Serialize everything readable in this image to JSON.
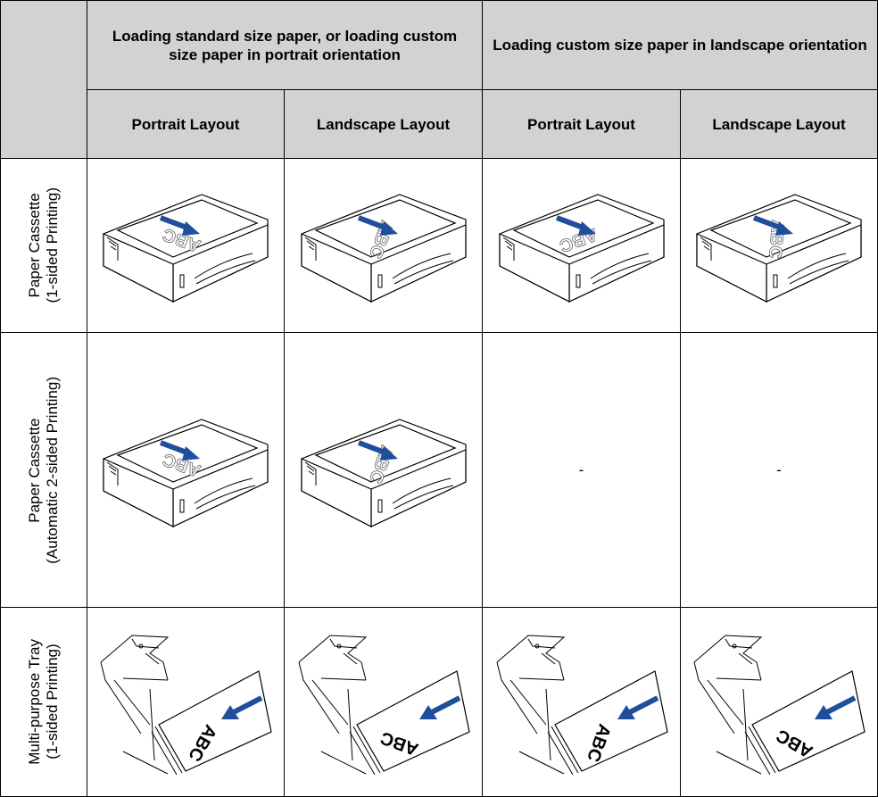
{
  "header": {
    "groups": [
      "Loading standard size paper, or loading custom size paper in portrait orientation",
      "Loading custom size paper in landscape orientation"
    ],
    "columns": [
      "Portrait Layout",
      "Landscape Layout",
      "Portrait Layout",
      "Landscape Layout"
    ]
  },
  "rows": [
    {
      "label": [
        "Paper Cassette",
        "(1-sided Printing)"
      ],
      "cells": [
        {
          "paper_text": "ABC"
        },
        {
          "paper_text": "ABC"
        },
        {
          "paper_text": "ABC"
        },
        {
          "paper_text": "ABC"
        }
      ]
    },
    {
      "label": [
        "Paper Cassette",
        "(Automatic 2-sided Printing)"
      ],
      "cells": [
        {
          "paper_text": "ABC"
        },
        {
          "paper_text": "ABC"
        },
        "-",
        "-"
      ]
    },
    {
      "label": [
        "Multi-purpose Tray",
        "(1-sided Printing)"
      ],
      "cells": [
        {
          "paper_text": "ABC"
        },
        {
          "paper_text": "ABC"
        },
        {
          "paper_text": "ABC"
        },
        {
          "paper_text": "ABC"
        }
      ]
    }
  ]
}
